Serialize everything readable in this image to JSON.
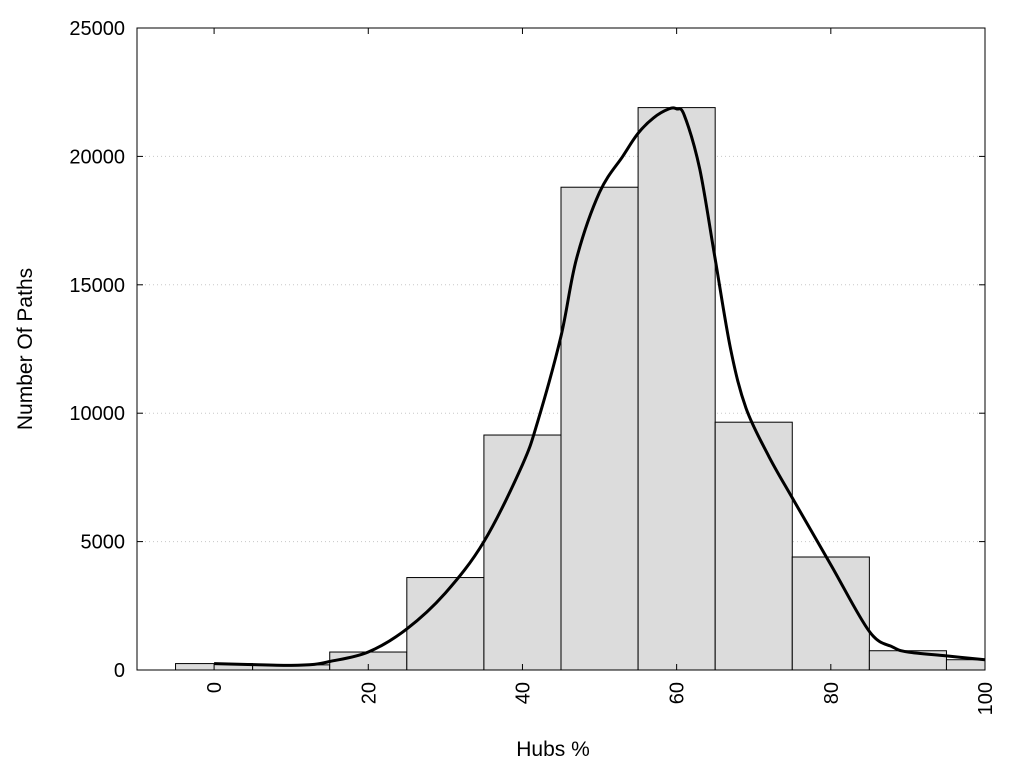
{
  "chart_data": {
    "type": "bar",
    "title": "",
    "xlabel": "Hubs %",
    "ylabel": "Number Of Paths",
    "xlim": [
      -10,
      100
    ],
    "ylim": [
      0,
      25000
    ],
    "x_ticks": [
      0,
      20,
      40,
      60,
      80,
      100
    ],
    "y_ticks": [
      0,
      5000,
      10000,
      15000,
      20000,
      25000
    ],
    "grid": "horizontal dotted",
    "bin_width": 10,
    "bars": [
      {
        "x": 0,
        "value": 250
      },
      {
        "x": 10,
        "value": 200
      },
      {
        "x": 20,
        "value": 700
      },
      {
        "x": 30,
        "value": 3600
      },
      {
        "x": 40,
        "value": 9150
      },
      {
        "x": 50,
        "value": 18800
      },
      {
        "x": 60,
        "value": 21900
      },
      {
        "x": 70,
        "value": 9650
      },
      {
        "x": 80,
        "value": 4400
      },
      {
        "x": 90,
        "value": 750
      },
      {
        "x": 100,
        "value": 400
      }
    ],
    "curve": {
      "type": "line",
      "points": [
        [
          0,
          250
        ],
        [
          5,
          210
        ],
        [
          10,
          180
        ],
        [
          13,
          220
        ],
        [
          15,
          330
        ],
        [
          20,
          700
        ],
        [
          25,
          1600
        ],
        [
          30,
          3000
        ],
        [
          35,
          5000
        ],
        [
          40,
          8000
        ],
        [
          42,
          9700
        ],
        [
          45,
          13000
        ],
        [
          47,
          16000
        ],
        [
          50,
          18600
        ],
        [
          53,
          20000
        ],
        [
          55,
          20900
        ],
        [
          57,
          21500
        ],
        [
          59,
          21850
        ],
        [
          60,
          21850
        ],
        [
          61,
          21600
        ],
        [
          63,
          19500
        ],
        [
          65,
          16000
        ],
        [
          67,
          12500
        ],
        [
          69,
          10200
        ],
        [
          72,
          8300
        ],
        [
          75,
          6700
        ],
        [
          80,
          4100
        ],
        [
          85,
          1500
        ],
        [
          88,
          900
        ],
        [
          90,
          700
        ],
        [
          95,
          550
        ],
        [
          100,
          400
        ]
      ]
    },
    "colors": {
      "bar_fill": "#dcdcdc",
      "bar_stroke": "#000000",
      "curve": "#000000",
      "grid": "#c8c8c8"
    }
  }
}
